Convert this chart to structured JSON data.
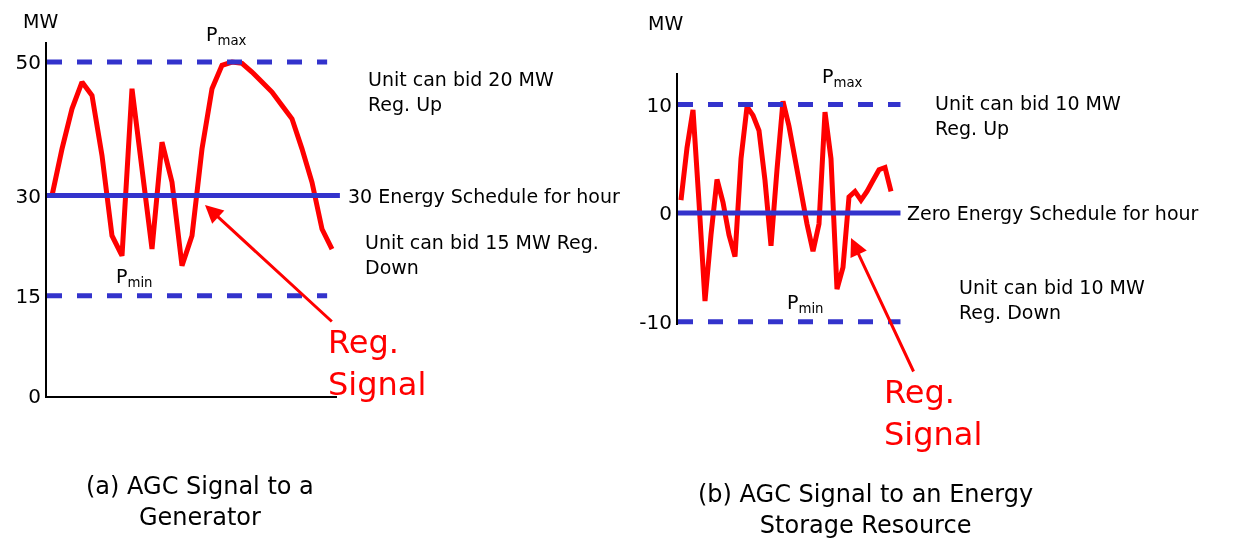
{
  "chart_data": [
    {
      "type": "line",
      "title": "(a) AGC Signal to a\nGenerator",
      "ylabel": "MW",
      "categories": [
        null,
        null,
        null,
        null,
        null,
        null,
        null,
        null,
        null,
        null,
        null,
        null,
        null,
        null,
        null,
        null,
        null,
        null,
        null,
        null,
        null,
        null,
        null,
        null,
        null,
        null,
        null,
        null,
        null
      ],
      "series": [
        {
          "color": "#ff0000",
          "values": [
            30,
            37,
            43,
            47,
            45,
            36,
            24,
            21,
            46,
            34,
            22,
            38,
            32,
            19.5,
            24,
            37,
            46,
            49.5,
            50,
            49.8,
            48.5,
            47,
            45.5,
            43.5,
            41.5,
            37,
            32,
            25,
            22
          ]
        }
      ],
      "ylim": [
        0,
        53
      ],
      "yticks": [
        0,
        15,
        30,
        50
      ],
      "ref_lines": [
        {
          "axis": "y",
          "value": 50,
          "label": "P$_{max}$",
          "color": "#3333cc",
          "line_style": "dashed"
        },
        {
          "axis": "y",
          "value": 30,
          "label": "30 Energy Schedule for hour",
          "color": "#3333cc",
          "line_style": "solid"
        },
        {
          "axis": "y",
          "value": 15,
          "label": "P$_{min}$",
          "color": "#3333cc",
          "line_style": "dashed"
        }
      ],
      "annotations": [
        "Unit can bid 20 MW\nReg. Up",
        "Unit can bid 15 MW Reg.\nDown",
        "Reg.\nSignal"
      ],
      "tick_labels": "y",
      "marker": "none",
      "line_style": "solid"
    },
    {
      "type": "line",
      "title": "(b) AGC Signal to an Energy\nStorage Resource",
      "ylabel": "MW",
      "categories": [
        null,
        null,
        null,
        null,
        null,
        null,
        null,
        null,
        null,
        null,
        null,
        null,
        null,
        null,
        null,
        null,
        null,
        null,
        null,
        null,
        null,
        null,
        null,
        null,
        null,
        null,
        null,
        null,
        null,
        null,
        null,
        null,
        null,
        null,
        null,
        null
      ],
      "series": [
        {
          "color": "#ff0000",
          "values": [
            1.2,
            6,
            9.5,
            1,
            -8.1,
            -2,
            3.1,
            1,
            -2,
            -4,
            5,
            9.8,
            9,
            7.6,
            3,
            -3,
            4,
            10.3,
            8,
            5,
            2,
            -1,
            -3.5,
            -1,
            9.3,
            5,
            -7,
            -5,
            1.5,
            2,
            1.2,
            2,
            3,
            4,
            4.2,
            2
          ]
        }
      ],
      "ylim": [
        -10.3,
        12.9
      ],
      "yticks": [
        -10,
        0,
        10
      ],
      "ref_lines": [
        {
          "axis": "y",
          "value": 10,
          "label": "P$_{max}$",
          "color": "#3333cc",
          "line_style": "dashed"
        },
        {
          "axis": "y",
          "value": 0,
          "label": "Zero Energy Schedule for hour",
          "color": "#3333cc",
          "line_style": "solid"
        },
        {
          "axis": "y",
          "value": -10,
          "label": "P$_{min}$",
          "color": "#3333cc",
          "line_style": "dashed"
        }
      ],
      "annotations": [
        "Unit can bid 10 MW\nReg. Up",
        "Unit can bid 10 MW\nReg. Down",
        "Reg.\nSignal"
      ],
      "tick_labels": "y",
      "marker": "none",
      "line_style": "solid"
    }
  ]
}
